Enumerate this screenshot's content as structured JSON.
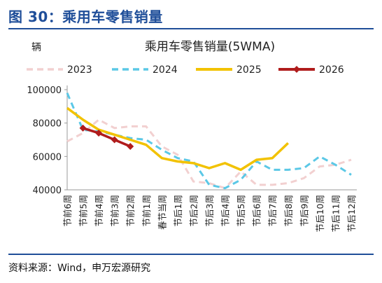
{
  "figure": {
    "title": "图 30：乘用车零售销量",
    "source": "资料来源：Wind，申万宏源研究"
  },
  "chart_data": {
    "type": "line",
    "title": "乘用车零售销量(5WMA)",
    "ylabel": "辆",
    "xlabel": "",
    "ylim": [
      40000,
      100000
    ],
    "yticks": [
      40000,
      60000,
      80000,
      100000
    ],
    "ytick_labels": [
      "40000",
      "60000",
      "80000",
      "100000"
    ],
    "grid": false,
    "legend_position": "top",
    "categories": [
      "节前6周",
      "节前5周",
      "节前4周",
      "节前3周",
      "节前2周",
      "节前1周",
      "春节当周",
      "节后1周",
      "节后2周",
      "节后3周",
      "节后4周",
      "节后5周",
      "节后6周",
      "节后7周",
      "节后8周",
      "节后9周",
      "节后10周",
      "节后11周",
      "节后12周"
    ],
    "series": [
      {
        "name": "2023",
        "color": "#f2d0d0",
        "style": "dashed",
        "marker": "none",
        "values": [
          69000,
          74000,
          82000,
          77000,
          78000,
          78000,
          66000,
          61000,
          45000,
          44000,
          41000,
          51000,
          43000,
          43000,
          44000,
          47000,
          54000,
          55000,
          58000
        ]
      },
      {
        "name": "2024",
        "color": "#5bc8e6",
        "style": "dashed",
        "marker": "none",
        "values": [
          98000,
          76000,
          75000,
          73000,
          71000,
          70000,
          64000,
          59000,
          57000,
          43000,
          41000,
          46000,
          57000,
          52000,
          52000,
          53000,
          60000,
          55000,
          49000
        ]
      },
      {
        "name": "2025",
        "color": "#f2c200",
        "style": "solid",
        "marker": "none",
        "values": [
          89000,
          82000,
          76000,
          73000,
          70000,
          67000,
          59000,
          57000,
          56000,
          53000,
          56000,
          52000,
          58000,
          59000,
          68000,
          null,
          null,
          null,
          null
        ]
      },
      {
        "name": "2026",
        "color": "#b01c1c",
        "style": "solid",
        "marker": "diamond",
        "values": [
          null,
          77000,
          74000,
          70000,
          66000,
          null,
          null,
          null,
          null,
          null,
          null,
          null,
          null,
          null,
          null,
          null,
          null,
          null,
          null
        ]
      }
    ]
  }
}
